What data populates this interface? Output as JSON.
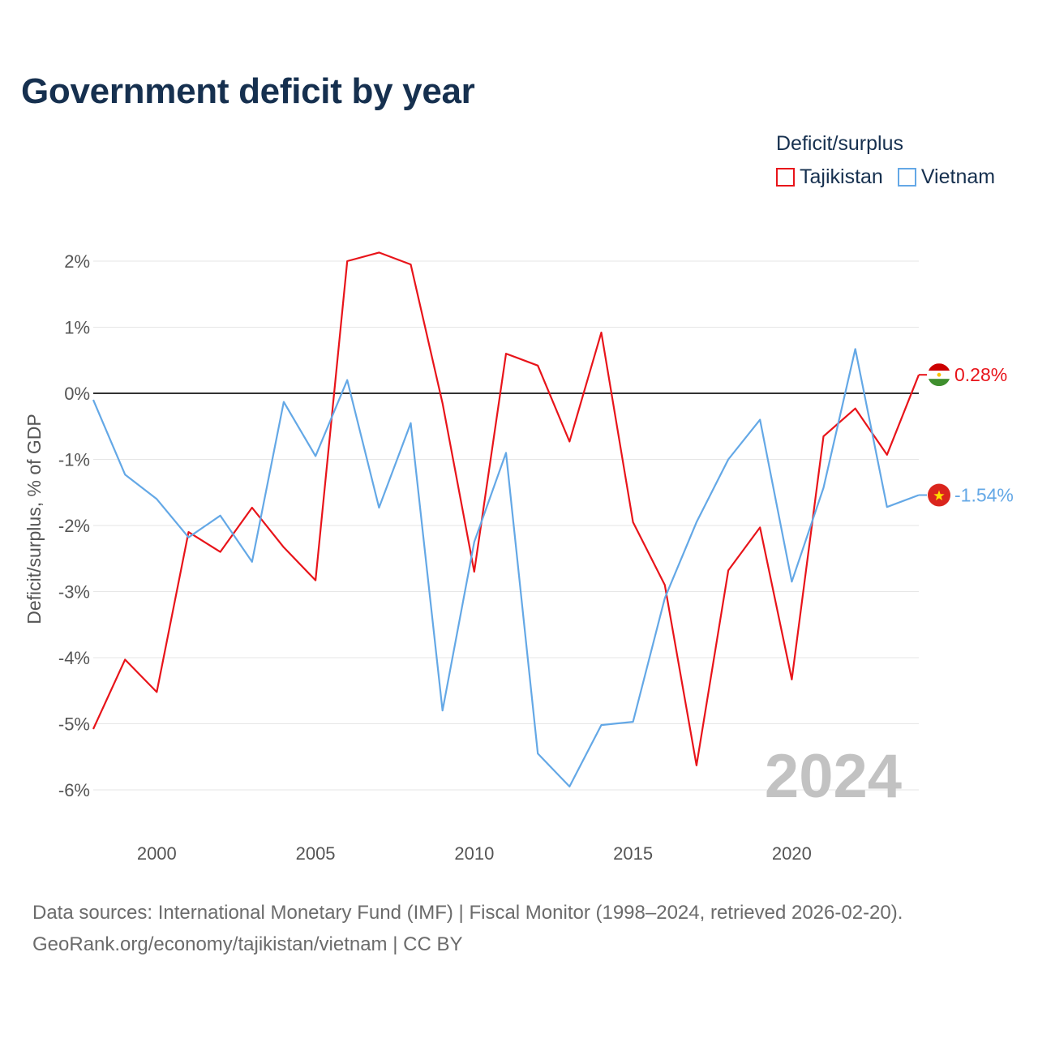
{
  "title": "Government deficit by year",
  "legend": {
    "title": "Deficit/surplus",
    "items": [
      {
        "label": "Tajikistan",
        "color": "#e8141a"
      },
      {
        "label": "Vietnam",
        "color": "#64a8e6"
      }
    ]
  },
  "source": {
    "line1": "Data sources: International Monetary Fund (IMF) | Fiscal Monitor (1998–2024, retrieved 2026-02-20).",
    "line2": "GeoRank.org/economy/tajikistan/vietnam | CC BY"
  },
  "watermark_year": "2024",
  "chart_data": {
    "type": "line",
    "title": "Government deficit by year",
    "xlabel": "",
    "ylabel": "Deficit/surplus, % of GDP",
    "xlim": [
      1998,
      2024
    ],
    "ylim": [
      -6.5,
      2.2
    ],
    "x_ticks": [
      {
        "value": 2000,
        "label": "2000"
      },
      {
        "value": 2005,
        "label": "2005"
      },
      {
        "value": 2010,
        "label": "2010"
      },
      {
        "value": 2015,
        "label": "2015"
      },
      {
        "value": 2020,
        "label": "2020"
      }
    ],
    "y_ticks": [
      {
        "value": 2,
        "label": "2%"
      },
      {
        "value": 1,
        "label": "1%"
      },
      {
        "value": 0,
        "label": "0%"
      },
      {
        "value": -1,
        "label": "-1%"
      },
      {
        "value": -2,
        "label": "-2%"
      },
      {
        "value": -3,
        "label": "-3%"
      },
      {
        "value": -4,
        "label": "-4%"
      },
      {
        "value": -5,
        "label": "-5%"
      },
      {
        "value": -6,
        "label": "-6%"
      }
    ],
    "grid": true,
    "x": [
      1998,
      1999,
      2000,
      2001,
      2002,
      2003,
      2004,
      2005,
      2006,
      2007,
      2008,
      2009,
      2010,
      2011,
      2012,
      2013,
      2014,
      2015,
      2016,
      2017,
      2018,
      2019,
      2020,
      2021,
      2022,
      2023,
      2024
    ],
    "series": [
      {
        "name": "Tajikistan",
        "color": "#e8141a",
        "values": [
          -5.08,
          -4.03,
          -4.52,
          -2.1,
          -2.4,
          -1.73,
          -2.33,
          -2.83,
          2.0,
          2.13,
          1.95,
          -0.15,
          -2.7,
          0.6,
          0.42,
          -0.73,
          0.92,
          -1.95,
          -2.9,
          -5.63,
          -2.68,
          -2.03,
          -4.33,
          -0.65,
          -0.23,
          -0.93,
          0.28
        ],
        "end_label": "0.28%"
      },
      {
        "name": "Vietnam",
        "color": "#64a8e6",
        "values": [
          -0.1,
          -1.23,
          -1.6,
          -2.18,
          -1.85,
          -2.55,
          -0.13,
          -0.95,
          0.2,
          -1.73,
          -0.45,
          -4.8,
          -2.25,
          -0.9,
          -5.45,
          -5.95,
          -5.02,
          -4.97,
          -3.1,
          -1.95,
          -1.0,
          -0.4,
          -2.85,
          -1.43,
          0.67,
          -1.72,
          -1.54
        ],
        "end_label": "-1.54%"
      }
    ],
    "annotations": [
      "2024"
    ]
  }
}
